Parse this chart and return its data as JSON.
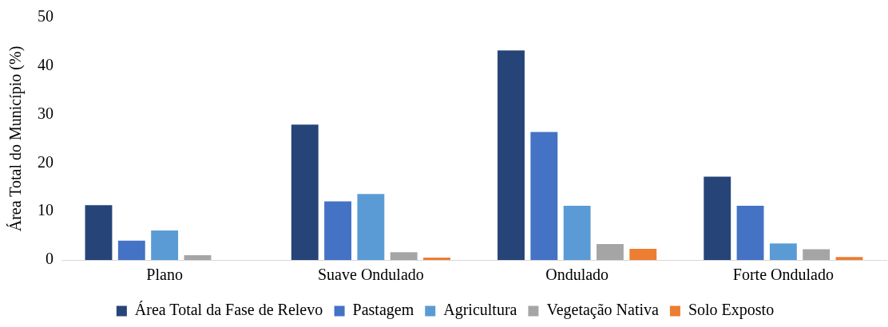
{
  "chart_data": {
    "type": "bar",
    "ylabel": "Área Total do Município (%)",
    "categories": [
      "Plano",
      "Suave Ondulado",
      "Ondulado",
      "Forte Ondulado"
    ],
    "series": [
      {
        "name": "Área Total da Fase de Relevo",
        "color": "#264478",
        "values": [
          11.3,
          27.9,
          43.2,
          17.2
        ]
      },
      {
        "name": "Pastagem",
        "color": "#4472c4",
        "values": [
          4.0,
          12.1,
          26.4,
          11.2
        ]
      },
      {
        "name": "Agricultura",
        "color": "#5b9bd5",
        "values": [
          6.1,
          13.6,
          11.2,
          3.4
        ]
      },
      {
        "name": "Vegetação Nativa",
        "color": "#a5a5a5",
        "values": [
          1.0,
          1.6,
          3.3,
          2.2
        ]
      },
      {
        "name": "Solo Exposto",
        "color": "#ed7d31",
        "values": [
          0,
          0.5,
          2.3,
          0.6
        ]
      }
    ],
    "ylim": [
      0,
      50
    ],
    "yticks": [
      0,
      10,
      20,
      30,
      40,
      50
    ],
    "grid": false,
    "legend": "bottom"
  }
}
